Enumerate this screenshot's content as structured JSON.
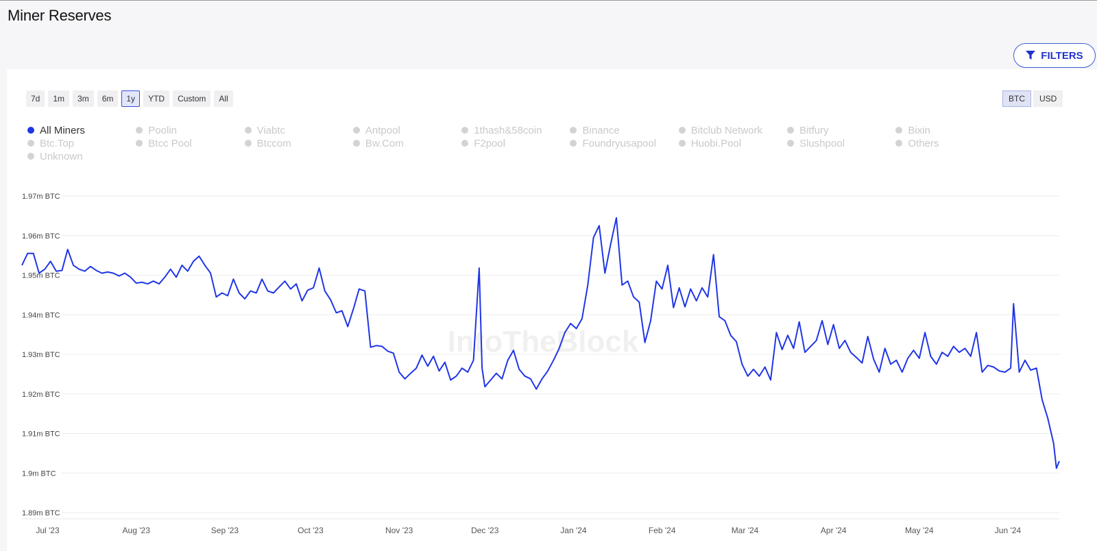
{
  "page_title": "Miner Reserves",
  "filters_label": "FILTERS",
  "time_ranges": [
    {
      "label": "7d",
      "active": false
    },
    {
      "label": "1m",
      "active": false
    },
    {
      "label": "3m",
      "active": false
    },
    {
      "label": "6m",
      "active": false
    },
    {
      "label": "1y",
      "active": true
    },
    {
      "label": "YTD",
      "active": false
    },
    {
      "label": "Custom",
      "active": false
    },
    {
      "label": "All",
      "active": false
    }
  ],
  "units": [
    {
      "label": "BTC",
      "active": true
    },
    {
      "label": "USD",
      "active": false
    }
  ],
  "legend": [
    {
      "label": "All Miners",
      "active": true
    },
    {
      "label": "Poolin",
      "active": false
    },
    {
      "label": "Viabtc",
      "active": false
    },
    {
      "label": "Antpool",
      "active": false
    },
    {
      "label": "1thash&58coin",
      "active": false
    },
    {
      "label": "Binance",
      "active": false
    },
    {
      "label": "Bitclub Network",
      "active": false
    },
    {
      "label": "Bitfury",
      "active": false
    },
    {
      "label": "Bixin",
      "active": false
    },
    {
      "label": "Btc.Top",
      "active": false
    },
    {
      "label": "Btcc Pool",
      "active": false
    },
    {
      "label": "Btccom",
      "active": false
    },
    {
      "label": "Bw.Com",
      "active": false
    },
    {
      "label": "F2pool",
      "active": false
    },
    {
      "label": "Foundryusapool",
      "active": false
    },
    {
      "label": "Huobi.Pool",
      "active": false
    },
    {
      "label": "Slushpool",
      "active": false
    },
    {
      "label": "Others",
      "active": false
    },
    {
      "label": "Unknown",
      "active": false
    }
  ],
  "watermark": "IntoTheBlock",
  "colors": {
    "line": "#1f35e6",
    "accent": "#2233cc",
    "grid": "#ececec",
    "inactive": "#c9c9c9"
  },
  "chart_data": {
    "type": "line",
    "title": "",
    "y_tick_labels": [
      "1.97m BTC",
      "1.96m BTC",
      "1.95m BTC",
      "1.94m BTC",
      "1.93m BTC",
      "1.92m BTC",
      "1.91m BTC",
      "1.9m BTC",
      "1.89m BTC"
    ],
    "y_ticks": [
      1.97,
      1.96,
      1.95,
      1.94,
      1.93,
      1.92,
      1.91,
      1.9,
      1.89
    ],
    "ylim": [
      1.89,
      1.97
    ],
    "y_unit": "m BTC",
    "x_tick_labels": [
      "Jul '23",
      "Aug '23",
      "Sep '23",
      "Oct '23",
      "Nov '23",
      "Dec '23",
      "Jan '24",
      "Feb '24",
      "Mar '24",
      "Apr '24",
      "May '24",
      "Jun '24"
    ],
    "x_ticks": [
      "2023-07-01",
      "2023-08-01",
      "2023-09-01",
      "2023-10-01",
      "2023-11-01",
      "2023-12-01",
      "2024-01-01",
      "2024-02-01",
      "2024-03-01",
      "2024-04-01",
      "2024-05-01",
      "2024-06-01"
    ],
    "xlim": [
      "2023-06-22",
      "2024-06-19"
    ],
    "grid": true,
    "series": [
      {
        "name": "All Miners",
        "points": [
          [
            "2023-06-22",
            1.9525
          ],
          [
            "2023-06-24",
            1.9555
          ],
          [
            "2023-06-26",
            1.9555
          ],
          [
            "2023-06-28",
            1.9505
          ],
          [
            "2023-06-30",
            1.9515
          ],
          [
            "2023-07-02",
            1.9535
          ],
          [
            "2023-07-04",
            1.951
          ],
          [
            "2023-07-06",
            1.9512
          ],
          [
            "2023-07-08",
            1.9565
          ],
          [
            "2023-07-10",
            1.9525
          ],
          [
            "2023-07-12",
            1.9515
          ],
          [
            "2023-07-14",
            1.951
          ],
          [
            "2023-07-16",
            1.9522
          ],
          [
            "2023-07-18",
            1.9512
          ],
          [
            "2023-07-20",
            1.9505
          ],
          [
            "2023-07-22",
            1.9508
          ],
          [
            "2023-07-24",
            1.9505
          ],
          [
            "2023-07-26",
            1.9498
          ],
          [
            "2023-07-28",
            1.9505
          ],
          [
            "2023-07-30",
            1.9495
          ],
          [
            "2023-08-01",
            1.948
          ],
          [
            "2023-08-03",
            1.9482
          ],
          [
            "2023-08-05",
            1.9478
          ],
          [
            "2023-08-07",
            1.9485
          ],
          [
            "2023-08-09",
            1.9478
          ],
          [
            "2023-08-11",
            1.9495
          ],
          [
            "2023-08-13",
            1.9515
          ],
          [
            "2023-08-15",
            1.9495
          ],
          [
            "2023-08-17",
            1.9525
          ],
          [
            "2023-08-19",
            1.951
          ],
          [
            "2023-08-21",
            1.9535
          ],
          [
            "2023-08-23",
            1.9548
          ],
          [
            "2023-08-25",
            1.9525
          ],
          [
            "2023-08-27",
            1.9505
          ],
          [
            "2023-08-29",
            1.9445
          ],
          [
            "2023-08-31",
            1.9455
          ],
          [
            "2023-09-02",
            1.9448
          ],
          [
            "2023-09-04",
            1.949
          ],
          [
            "2023-09-06",
            1.9455
          ],
          [
            "2023-09-08",
            1.944
          ],
          [
            "2023-09-10",
            1.946
          ],
          [
            "2023-09-12",
            1.9455
          ],
          [
            "2023-09-14",
            1.949
          ],
          [
            "2023-09-16",
            1.946
          ],
          [
            "2023-09-18",
            1.9455
          ],
          [
            "2023-09-20",
            1.947
          ],
          [
            "2023-09-22",
            1.9485
          ],
          [
            "2023-09-24",
            1.9465
          ],
          [
            "2023-09-26",
            1.9478
          ],
          [
            "2023-09-28",
            1.9435
          ],
          [
            "2023-09-30",
            1.9462
          ],
          [
            "2023-10-02",
            1.9468
          ],
          [
            "2023-10-04",
            1.9518
          ],
          [
            "2023-10-06",
            1.946
          ],
          [
            "2023-10-08",
            1.9438
          ],
          [
            "2023-10-10",
            1.9405
          ],
          [
            "2023-10-12",
            1.941
          ],
          [
            "2023-10-14",
            1.937
          ],
          [
            "2023-10-16",
            1.9415
          ],
          [
            "2023-10-18",
            1.9465
          ],
          [
            "2023-10-20",
            1.946
          ],
          [
            "2023-10-22",
            1.9318
          ],
          [
            "2023-10-24",
            1.9322
          ],
          [
            "2023-10-26",
            1.932
          ],
          [
            "2023-10-28",
            1.9308
          ],
          [
            "2023-10-30",
            1.9303
          ],
          [
            "2023-11-01",
            1.9255
          ],
          [
            "2023-11-03",
            1.9238
          ],
          [
            "2023-11-05",
            1.9252
          ],
          [
            "2023-11-07",
            1.9265
          ],
          [
            "2023-11-09",
            1.9298
          ],
          [
            "2023-11-11",
            1.927
          ],
          [
            "2023-11-13",
            1.9295
          ],
          [
            "2023-11-15",
            1.9258
          ],
          [
            "2023-11-17",
            1.928
          ],
          [
            "2023-11-19",
            1.9235
          ],
          [
            "2023-11-21",
            1.9245
          ],
          [
            "2023-11-23",
            1.9265
          ],
          [
            "2023-11-25",
            1.9255
          ],
          [
            "2023-11-27",
            1.9285
          ],
          [
            "2023-11-29",
            1.9518
          ],
          [
            "2023-11-30",
            1.9265
          ],
          [
            "2023-12-01",
            1.9218
          ],
          [
            "2023-12-03",
            1.9235
          ],
          [
            "2023-12-05",
            1.9252
          ],
          [
            "2023-12-07",
            1.9238
          ],
          [
            "2023-12-09",
            1.9285
          ],
          [
            "2023-12-11",
            1.931
          ],
          [
            "2023-12-13",
            1.9262
          ],
          [
            "2023-12-15",
            1.9245
          ],
          [
            "2023-12-17",
            1.9238
          ],
          [
            "2023-12-19",
            1.9212
          ],
          [
            "2023-12-21",
            1.9238
          ],
          [
            "2023-12-23",
            1.9258
          ],
          [
            "2023-12-25",
            1.9285
          ],
          [
            "2023-12-27",
            1.9315
          ],
          [
            "2023-12-29",
            1.9355
          ],
          [
            "2023-12-31",
            1.9378
          ],
          [
            "2024-01-02",
            1.9365
          ],
          [
            "2024-01-04",
            1.939
          ],
          [
            "2024-01-06",
            1.9475
          ],
          [
            "2024-01-08",
            1.9595
          ],
          [
            "2024-01-10",
            1.9625
          ],
          [
            "2024-01-12",
            1.9505
          ],
          [
            "2024-01-14",
            1.9578
          ],
          [
            "2024-01-16",
            1.9645
          ],
          [
            "2024-01-18",
            1.9475
          ],
          [
            "2024-01-20",
            1.9485
          ],
          [
            "2024-01-22",
            1.9445
          ],
          [
            "2024-01-24",
            1.9432
          ],
          [
            "2024-01-26",
            1.933
          ],
          [
            "2024-01-28",
            1.9385
          ],
          [
            "2024-01-30",
            1.9485
          ],
          [
            "2024-02-01",
            1.9465
          ],
          [
            "2024-02-03",
            1.9525
          ],
          [
            "2024-02-05",
            1.9418
          ],
          [
            "2024-02-07",
            1.9468
          ],
          [
            "2024-02-09",
            1.942
          ],
          [
            "2024-02-11",
            1.9465
          ],
          [
            "2024-02-13",
            1.9435
          ],
          [
            "2024-02-15",
            1.9468
          ],
          [
            "2024-02-17",
            1.9445
          ],
          [
            "2024-02-19",
            1.9552
          ],
          [
            "2024-02-21",
            1.9395
          ],
          [
            "2024-02-23",
            1.9385
          ],
          [
            "2024-02-25",
            1.9348
          ],
          [
            "2024-02-27",
            1.9332
          ],
          [
            "2024-02-29",
            1.9275
          ],
          [
            "2024-03-02",
            1.9245
          ],
          [
            "2024-03-04",
            1.9262
          ],
          [
            "2024-03-06",
            1.9245
          ],
          [
            "2024-03-08",
            1.9268
          ],
          [
            "2024-03-10",
            1.9235
          ],
          [
            "2024-03-12",
            1.9355
          ],
          [
            "2024-03-14",
            1.9312
          ],
          [
            "2024-03-16",
            1.9348
          ],
          [
            "2024-03-18",
            1.9315
          ],
          [
            "2024-03-20",
            1.9382
          ],
          [
            "2024-03-22",
            1.9305
          ],
          [
            "2024-03-24",
            1.932
          ],
          [
            "2024-03-26",
            1.9335
          ],
          [
            "2024-03-28",
            1.9385
          ],
          [
            "2024-03-30",
            1.9325
          ],
          [
            "2024-04-01",
            1.9375
          ],
          [
            "2024-04-03",
            1.9315
          ],
          [
            "2024-04-05",
            1.9335
          ],
          [
            "2024-04-07",
            1.9305
          ],
          [
            "2024-04-09",
            1.9292
          ],
          [
            "2024-04-11",
            1.9278
          ],
          [
            "2024-04-13",
            1.9345
          ],
          [
            "2024-04-15",
            1.9288
          ],
          [
            "2024-04-17",
            1.9255
          ],
          [
            "2024-04-19",
            1.9315
          ],
          [
            "2024-04-21",
            1.9275
          ],
          [
            "2024-04-23",
            1.9285
          ],
          [
            "2024-04-25",
            1.9255
          ],
          [
            "2024-04-27",
            1.929
          ],
          [
            "2024-04-29",
            1.931
          ],
          [
            "2024-05-01",
            1.929
          ],
          [
            "2024-05-03",
            1.9355
          ],
          [
            "2024-05-05",
            1.9295
          ],
          [
            "2024-05-07",
            1.9275
          ],
          [
            "2024-05-09",
            1.9305
          ],
          [
            "2024-05-11",
            1.9295
          ],
          [
            "2024-05-13",
            1.932
          ],
          [
            "2024-05-15",
            1.9305
          ],
          [
            "2024-05-17",
            1.9315
          ],
          [
            "2024-05-19",
            1.9295
          ],
          [
            "2024-05-21",
            1.9355
          ],
          [
            "2024-05-23",
            1.9255
          ],
          [
            "2024-05-25",
            1.9272
          ],
          [
            "2024-05-27",
            1.9268
          ],
          [
            "2024-05-29",
            1.9258
          ],
          [
            "2024-05-31",
            1.9255
          ],
          [
            "2024-06-02",
            1.9265
          ],
          [
            "2024-06-03",
            1.9428
          ],
          [
            "2024-06-05",
            1.9255
          ],
          [
            "2024-06-07",
            1.9285
          ],
          [
            "2024-06-09",
            1.926
          ],
          [
            "2024-06-11",
            1.9265
          ],
          [
            "2024-06-13",
            1.9185
          ],
          [
            "2024-06-15",
            1.9138
          ],
          [
            "2024-06-17",
            1.9075
          ],
          [
            "2024-06-18",
            1.9012
          ],
          [
            "2024-06-19",
            1.903
          ]
        ]
      }
    ]
  }
}
